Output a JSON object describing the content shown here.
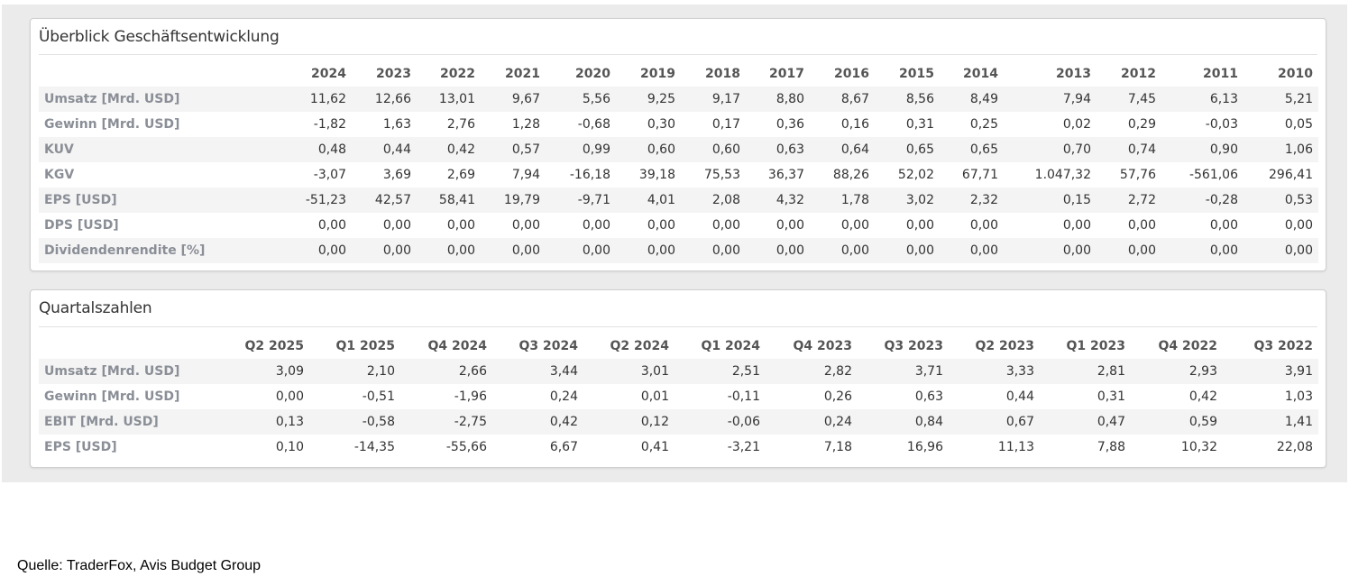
{
  "overview": {
    "title": "Überblick Geschäftsentwicklung",
    "columns": [
      "2024",
      "2023",
      "2022",
      "2021",
      "2020",
      "2019",
      "2018",
      "2017",
      "2016",
      "2015",
      "2014",
      "2013",
      "2012",
      "2011",
      "2010"
    ],
    "rows": [
      {
        "label": "Umsatz [Mrd. USD]",
        "values": [
          "11,62",
          "12,66",
          "13,01",
          "9,67",
          "5,56",
          "9,25",
          "9,17",
          "8,80",
          "8,67",
          "8,56",
          "8,49",
          "7,94",
          "7,45",
          "6,13",
          "5,21"
        ]
      },
      {
        "label": "Gewinn [Mrd. USD]",
        "values": [
          "-1,82",
          "1,63",
          "2,76",
          "1,28",
          "-0,68",
          "0,30",
          "0,17",
          "0,36",
          "0,16",
          "0,31",
          "0,25",
          "0,02",
          "0,29",
          "-0,03",
          "0,05"
        ]
      },
      {
        "label": "KUV",
        "values": [
          "0,48",
          "0,44",
          "0,42",
          "0,57",
          "0,99",
          "0,60",
          "0,60",
          "0,63",
          "0,64",
          "0,65",
          "0,65",
          "0,70",
          "0,74",
          "0,90",
          "1,06"
        ]
      },
      {
        "label": "KGV",
        "values": [
          "-3,07",
          "3,69",
          "2,69",
          "7,94",
          "-16,18",
          "39,18",
          "75,53",
          "36,37",
          "88,26",
          "52,02",
          "67,71",
          "1.047,32",
          "57,76",
          "-561,06",
          "296,41"
        ]
      },
      {
        "label": "EPS [USD]",
        "values": [
          "-51,23",
          "42,57",
          "58,41",
          "19,79",
          "-9,71",
          "4,01",
          "2,08",
          "4,32",
          "1,78",
          "3,02",
          "2,32",
          "0,15",
          "2,72",
          "-0,28",
          "0,53"
        ]
      },
      {
        "label": "DPS [USD]",
        "values": [
          "0,00",
          "0,00",
          "0,00",
          "0,00",
          "0,00",
          "0,00",
          "0,00",
          "0,00",
          "0,00",
          "0,00",
          "0,00",
          "0,00",
          "0,00",
          "0,00",
          "0,00"
        ]
      },
      {
        "label": "Dividendenrendite [%]",
        "values": [
          "0,00",
          "0,00",
          "0,00",
          "0,00",
          "0,00",
          "0,00",
          "0,00",
          "0,00",
          "0,00",
          "0,00",
          "0,00",
          "0,00",
          "0,00",
          "0,00",
          "0,00"
        ]
      }
    ]
  },
  "quarterly": {
    "title": "Quartalszahlen",
    "columns": [
      "Q2 2025",
      "Q1 2025",
      "Q4 2024",
      "Q3 2024",
      "Q2 2024",
      "Q1 2024",
      "Q4 2023",
      "Q3 2023",
      "Q2 2023",
      "Q1 2023",
      "Q4 2022",
      "Q3 2022"
    ],
    "rows": [
      {
        "label": "Umsatz [Mrd. USD]",
        "values": [
          "3,09",
          "2,10",
          "2,66",
          "3,44",
          "3,01",
          "2,51",
          "2,82",
          "3,71",
          "3,33",
          "2,81",
          "2,93",
          "3,91"
        ]
      },
      {
        "label": "Gewinn [Mrd. USD]",
        "values": [
          "0,00",
          "-0,51",
          "-1,96",
          "0,24",
          "0,01",
          "-0,11",
          "0,26",
          "0,63",
          "0,44",
          "0,31",
          "0,42",
          "1,03"
        ]
      },
      {
        "label": "EBIT [Mrd. USD]",
        "values": [
          "0,13",
          "-0,58",
          "-2,75",
          "0,42",
          "0,12",
          "-0,06",
          "0,24",
          "0,84",
          "0,67",
          "0,47",
          "0,59",
          "1,41"
        ]
      },
      {
        "label": "EPS [USD]",
        "values": [
          "0,10",
          "-14,35",
          "-55,66",
          "6,67",
          "0,41",
          "-3,21",
          "7,18",
          "16,96",
          "11,13",
          "7,88",
          "10,32",
          "22,08"
        ]
      }
    ]
  },
  "source": "Quelle: TraderFox, Avis Budget Group"
}
